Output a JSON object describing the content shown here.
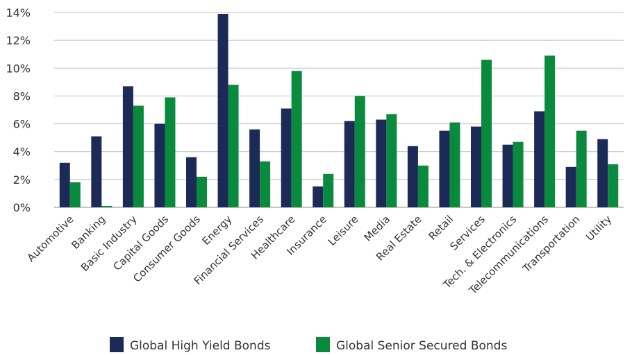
{
  "chart_data": {
    "type": "bar",
    "categories": [
      "Automotive",
      "Banking",
      "Basic Industry",
      "Capital Goods",
      "Consumer Goods",
      "Energy",
      "Financial Services",
      "Healthcare",
      "Insurance",
      "Leisure",
      "Media",
      "Real Estate",
      "Retail",
      "Services",
      "Tech. & Electronics",
      "Telecommunications",
      "Transportation",
      "Utility"
    ],
    "series": [
      {
        "name": "Global High Yield Bonds",
        "color": "#1c2a57",
        "values": [
          3.2,
          5.1,
          8.7,
          6.0,
          3.6,
          13.9,
          5.6,
          7.1,
          1.5,
          6.2,
          6.3,
          4.4,
          5.5,
          5.8,
          4.5,
          6.9,
          2.9,
          4.9
        ]
      },
      {
        "name": "Global Senior Secured Bonds",
        "color": "#0a8a3c",
        "values": [
          1.8,
          0.1,
          7.3,
          7.9,
          2.2,
          8.8,
          3.3,
          9.8,
          2.4,
          8.0,
          6.7,
          3.0,
          6.1,
          10.6,
          4.7,
          10.9,
          5.5,
          3.1
        ]
      }
    ],
    "ylim": [
      0,
      14
    ],
    "yticks": [
      0,
      2,
      4,
      6,
      8,
      10,
      12,
      14
    ],
    "ytick_labels": [
      "0%",
      "2%",
      "4%",
      "6%",
      "8%",
      "10%",
      "12%",
      "14%"
    ],
    "grid": true,
    "legend_position": "bottom"
  }
}
